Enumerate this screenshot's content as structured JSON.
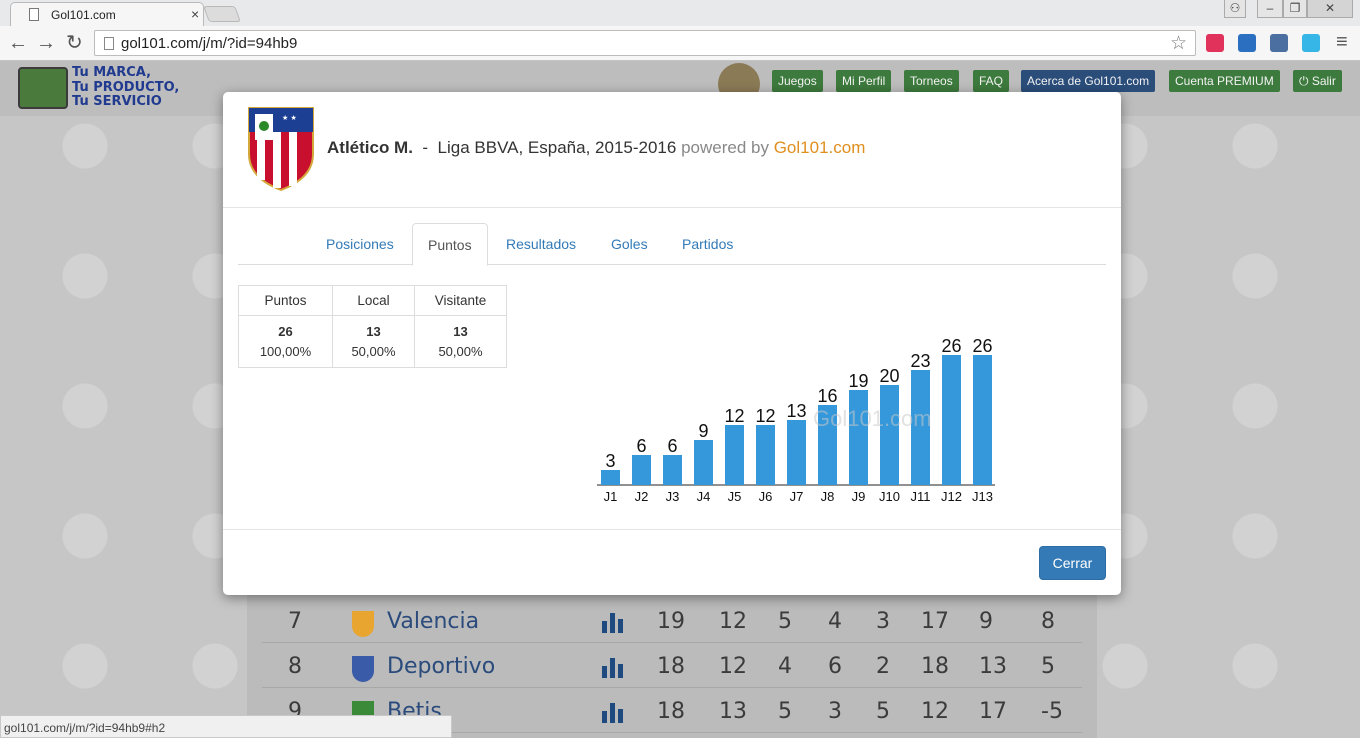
{
  "browser": {
    "tab_title": "Gol101.com",
    "tab_close": "×",
    "url": "gol101.com/j/m/?id=94hb9",
    "status_url": "gol101.com/j/m/?id=94hb9#h2",
    "back": "←",
    "forward": "→",
    "reload": "↻",
    "star": "☆",
    "menu": "≡",
    "window_controls": {
      "profile": "⚇",
      "minimize": "–",
      "maximize": "❐",
      "close": "✕"
    }
  },
  "site": {
    "logo_text": "Tu MARCA,\nTu  PRODUCTO,\nTu SERVICIO",
    "nav": {
      "juegos": "Juegos",
      "perfil": "Mi Perfil",
      "torneos": "Torneos",
      "faq": "FAQ",
      "acerca": "Acerca de Gol101.com",
      "premium": "Cuenta PREMIUM",
      "salir": "⏻ Salir"
    }
  },
  "standings": [
    {
      "pos": "7",
      "team": "Valencia",
      "pts": "19",
      "pj": "12",
      "g": "5",
      "e": "4",
      "p": "3",
      "gf": "17",
      "gc": "9",
      "dif": "8",
      "crest_color": "#e8a530"
    },
    {
      "pos": "8",
      "team": "Deportivo",
      "pts": "18",
      "pj": "12",
      "g": "4",
      "e": "6",
      "p": "2",
      "gf": "18",
      "gc": "13",
      "dif": "5",
      "crest_color": "#3a5ca8"
    },
    {
      "pos": "9",
      "team": "Betis",
      "pts": "18",
      "pj": "13",
      "g": "5",
      "e": "3",
      "p": "5",
      "gf": "12",
      "gc": "17",
      "dif": "-5",
      "crest_color": "#3a8a3a"
    }
  ],
  "modal": {
    "team": "Atlético M.",
    "separator": "-",
    "league": "Liga BBVA, España, 2015-2016",
    "powered_by": "powered by",
    "brand": "Gol101.com",
    "tabs": {
      "posiciones": "Posiciones",
      "puntos": "Puntos",
      "resultados": "Resultados",
      "goles": "Goles",
      "partidos": "Partidos"
    },
    "table": {
      "headers": {
        "puntos": "Puntos",
        "local": "Local",
        "visitante": "Visitante"
      },
      "values": {
        "puntos": "26",
        "puntos_pct": "100,00%",
        "local": "13",
        "local_pct": "50,00%",
        "visitante": "13",
        "visitante_pct": "50,00%"
      }
    },
    "close_label": "Cerrar"
  },
  "chart_data": {
    "type": "bar",
    "categories": [
      "J1",
      "J2",
      "J3",
      "J4",
      "J5",
      "J6",
      "J7",
      "J8",
      "J9",
      "J10",
      "J11",
      "J12",
      "J13"
    ],
    "values": [
      3,
      6,
      6,
      9,
      12,
      12,
      13,
      16,
      19,
      20,
      23,
      26,
      26
    ],
    "watermark": "Gol101.com",
    "bar_color": "#3498db",
    "data_labels": true,
    "grid": false
  },
  "colors": {
    "accent": "#337ab7",
    "brand_orange": "#e08f1e",
    "bar": "#3498db"
  }
}
